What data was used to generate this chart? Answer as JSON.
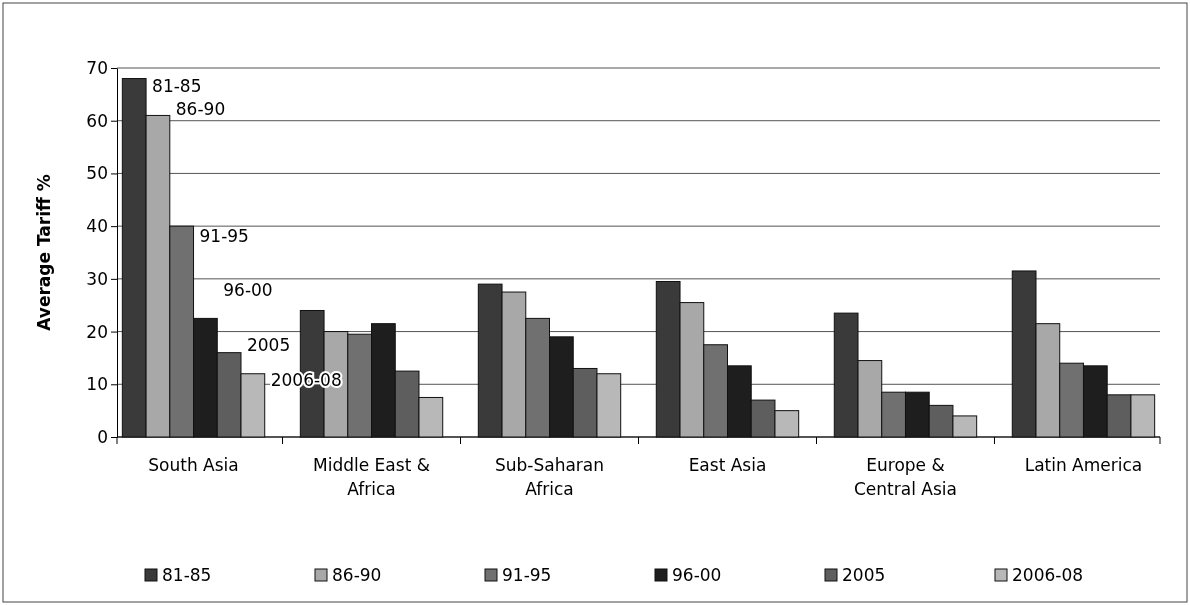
{
  "chart_data": {
    "type": "bar",
    "ylabel": "Average Tariff %",
    "categories": [
      "South Asia",
      "Middle East & Africa",
      "Sub-Saharan Africa",
      "East Asia",
      "Europe & Central Asia",
      "Latin America"
    ],
    "series": [
      {
        "name": "81-85",
        "color": "#3a3a3a",
        "values": [
          68,
          24,
          29,
          29.5,
          23.5,
          31.5
        ]
      },
      {
        "name": "86-90",
        "color": "#a8a8a8",
        "values": [
          61,
          20,
          27.5,
          25.5,
          14.5,
          21.5
        ]
      },
      {
        "name": "91-95",
        "color": "#707070",
        "values": [
          40,
          19.5,
          22.5,
          17.5,
          8.5,
          14
        ]
      },
      {
        "name": "96-00",
        "color": "#1e1e1e",
        "values": [
          22.5,
          21.5,
          19,
          13.5,
          8.5,
          13.5
        ]
      },
      {
        "name": "2005",
        "color": "#5e5e5e",
        "values": [
          16,
          12.5,
          13,
          7,
          6,
          8
        ]
      },
      {
        "name": "2006-08",
        "color": "#b8b8b8",
        "values": [
          12,
          7.5,
          12,
          5,
          4,
          8
        ]
      }
    ],
    "annotations": [
      "81-85",
      "86-90",
      "91-95",
      "96-00",
      "2005",
      "2006-08"
    ],
    "ylim": [
      0,
      70
    ],
    "yticks": [
      0,
      10,
      20,
      30,
      40,
      50,
      60,
      70
    ],
    "grid": "y",
    "legend": "bottom"
  }
}
